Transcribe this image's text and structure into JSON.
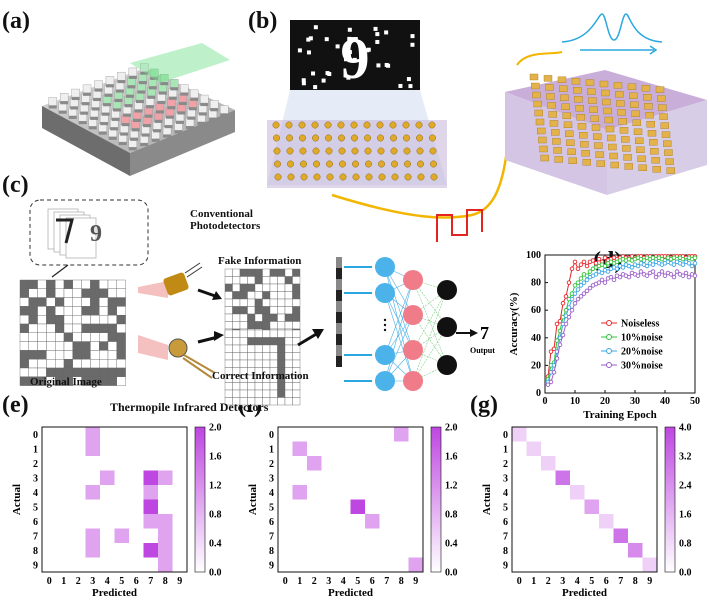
{
  "panels": {
    "a": "(a)",
    "b": "(b)",
    "c": "(c)",
    "d": "(d)",
    "e": "(e)",
    "f": "(f)",
    "g": "(g)"
  },
  "panel_c": {
    "conventional_label": "Conventional\nPhotodetectors",
    "fake_info": "Fake Information",
    "correct_info": "Correct Information",
    "original_image": "Original Image",
    "thermopile": "Thermopile  Infrared Detectors",
    "output_digit": "7",
    "output_label": "Output"
  },
  "chart_data": [
    {
      "id": "d",
      "type": "line",
      "xlabel": "Training Epoch",
      "ylabel": "Accuracy(%)",
      "xlim": [
        0,
        50
      ],
      "ylim": [
        0,
        100
      ],
      "xticks": [
        0,
        10,
        20,
        30,
        40,
        50
      ],
      "yticks": [
        0,
        20,
        40,
        60,
        80,
        100
      ],
      "legend_position": "center-right",
      "series": [
        {
          "name": "Noiseless",
          "color": "#e8262a",
          "marker": "circle",
          "x": [
            1,
            2,
            3,
            4,
            5,
            6,
            7,
            8,
            9,
            10,
            11,
            12,
            13,
            14,
            15,
            16,
            17,
            18,
            19,
            20,
            21,
            22,
            23,
            24,
            25,
            26,
            27,
            28,
            29,
            30,
            31,
            32,
            33,
            34,
            35,
            36,
            37,
            38,
            39,
            40,
            41,
            42,
            43,
            44,
            45,
            46,
            47,
            48,
            49,
            50
          ],
          "y": [
            12,
            30,
            32,
            50,
            52,
            65,
            70,
            80,
            90,
            95,
            90,
            93,
            95,
            92,
            95,
            96,
            94,
            97,
            95,
            98,
            96,
            97,
            98,
            97,
            98,
            99,
            98,
            98,
            99,
            98,
            99,
            99,
            98,
            99,
            99,
            98,
            99,
            99,
            99,
            99,
            99,
            98,
            99,
            99,
            99,
            99,
            98,
            99,
            99,
            99
          ]
        },
        {
          "name": "10%noise",
          "color": "#33c23a",
          "marker": "circle",
          "x": [
            1,
            2,
            3,
            4,
            5,
            6,
            7,
            8,
            9,
            10,
            11,
            12,
            13,
            14,
            15,
            16,
            17,
            18,
            19,
            20,
            21,
            22,
            23,
            24,
            25,
            26,
            27,
            28,
            29,
            30,
            31,
            32,
            33,
            34,
            35,
            36,
            37,
            38,
            39,
            40,
            41,
            42,
            43,
            44,
            45,
            46,
            47,
            48,
            49,
            50
          ],
          "y": [
            10,
            20,
            22,
            38,
            45,
            55,
            60,
            68,
            72,
            78,
            80,
            83,
            86,
            85,
            88,
            90,
            91,
            92,
            93,
            92,
            94,
            95,
            94,
            95,
            96,
            97,
            96,
            97,
            96,
            97,
            98,
            97,
            96,
            98,
            97,
            98,
            97,
            98,
            97,
            96,
            98,
            97,
            98,
            97,
            98,
            97,
            96,
            98,
            97,
            98
          ]
        },
        {
          "name": "20%noise",
          "color": "#3aa5e6",
          "marker": "circle",
          "x": [
            1,
            2,
            3,
            4,
            5,
            6,
            7,
            8,
            9,
            10,
            11,
            12,
            13,
            14,
            15,
            16,
            17,
            18,
            19,
            20,
            21,
            22,
            23,
            24,
            25,
            26,
            27,
            28,
            29,
            30,
            31,
            32,
            33,
            34,
            35,
            36,
            37,
            38,
            39,
            40,
            41,
            42,
            43,
            44,
            45,
            46,
            47,
            48,
            49,
            50
          ],
          "y": [
            8,
            15,
            20,
            30,
            40,
            50,
            56,
            62,
            68,
            72,
            75,
            78,
            80,
            82,
            84,
            85,
            86,
            88,
            87,
            89,
            88,
            90,
            91,
            90,
            92,
            91,
            93,
            92,
            91,
            93,
            92,
            94,
            93,
            92,
            94,
            93,
            95,
            94,
            93,
            94,
            95,
            94,
            93,
            95,
            94,
            93,
            95,
            94,
            92,
            94
          ]
        },
        {
          "name": "30%noise",
          "color": "#9a5ec9",
          "marker": "circle",
          "x": [
            1,
            2,
            3,
            4,
            5,
            6,
            7,
            8,
            9,
            10,
            11,
            12,
            13,
            14,
            15,
            16,
            17,
            18,
            19,
            20,
            21,
            22,
            23,
            24,
            25,
            26,
            27,
            28,
            29,
            30,
            31,
            32,
            33,
            34,
            35,
            36,
            37,
            38,
            39,
            40,
            41,
            42,
            43,
            44,
            45,
            46,
            47,
            48,
            49,
            50
          ],
          "y": [
            6,
            8,
            15,
            25,
            35,
            42,
            50,
            55,
            60,
            65,
            68,
            70,
            72,
            74,
            76,
            78,
            79,
            80,
            82,
            80,
            83,
            84,
            82,
            85,
            84,
            86,
            85,
            84,
            87,
            86,
            85,
            88,
            86,
            85,
            87,
            88,
            84,
            86,
            88,
            85,
            87,
            86,
            84,
            88,
            86,
            85,
            87,
            84,
            86,
            85
          ]
        }
      ]
    },
    {
      "id": "e",
      "type": "heatmap",
      "xlabel": "Predicted",
      "ylabel": "Actual",
      "xticks": [
        "0",
        "1",
        "2",
        "3",
        "4",
        "5",
        "6",
        "7",
        "8",
        "9"
      ],
      "yticks": [
        "0",
        "1",
        "2",
        "3",
        "4",
        "5",
        "6",
        "7",
        "8",
        "9"
      ],
      "colorbar_ticks": [
        "0.0",
        "0.4",
        "0.8",
        "1.2",
        "1.6",
        "2.0"
      ],
      "colorbar_range": [
        0,
        2.0
      ],
      "cells": [
        [
          0,
          3,
          1
        ],
        [
          1,
          3,
          1
        ],
        [
          3,
          4,
          1
        ],
        [
          3,
          7,
          2
        ],
        [
          3,
          8,
          1
        ],
        [
          4,
          3,
          1
        ],
        [
          4,
          7,
          1
        ],
        [
          5,
          7,
          2
        ],
        [
          6,
          7,
          1
        ],
        [
          6,
          8,
          1
        ],
        [
          7,
          3,
          1
        ],
        [
          7,
          5,
          1
        ],
        [
          7,
          8,
          1
        ],
        [
          8,
          3,
          1
        ],
        [
          8,
          7,
          2
        ],
        [
          8,
          8,
          1
        ],
        [
          9,
          8,
          1
        ]
      ]
    },
    {
      "id": "f",
      "type": "heatmap",
      "xlabel": "Predicted",
      "ylabel": "Actual",
      "xticks": [
        "0",
        "1",
        "2",
        "3",
        "4",
        "5",
        "6",
        "7",
        "8",
        "9"
      ],
      "yticks": [
        "0",
        "1",
        "2",
        "3",
        "4",
        "5",
        "6",
        "7",
        "8",
        "9"
      ],
      "colorbar_ticks": [
        "0.0",
        "0.4",
        "0.8",
        "1.2",
        "1.6",
        "2.0"
      ],
      "colorbar_range": [
        0,
        2.0
      ],
      "cells": [
        [
          0,
          8,
          1
        ],
        [
          1,
          1,
          1
        ],
        [
          2,
          2,
          1
        ],
        [
          4,
          1,
          1
        ],
        [
          5,
          5,
          2
        ],
        [
          6,
          6,
          1
        ],
        [
          9,
          9,
          1
        ]
      ]
    },
    {
      "id": "g",
      "type": "heatmap",
      "xlabel": "Predicted",
      "ylabel": "Actual",
      "xticks": [
        "0",
        "1",
        "2",
        "3",
        "4",
        "5",
        "6",
        "7",
        "8",
        "9"
      ],
      "yticks": [
        "0",
        "1",
        "2",
        "3",
        "4",
        "5",
        "6",
        "7",
        "8",
        "9"
      ],
      "colorbar_ticks": [
        "0.0",
        "0.8",
        "1.6",
        "2.4",
        "3.2",
        "4.0"
      ],
      "colorbar_range": [
        0,
        4.0
      ],
      "cells": [
        [
          0,
          0,
          1
        ],
        [
          1,
          1,
          1
        ],
        [
          2,
          2,
          1
        ],
        [
          3,
          3,
          3
        ],
        [
          4,
          4,
          1
        ],
        [
          5,
          5,
          2
        ],
        [
          6,
          6,
          1
        ],
        [
          7,
          7,
          3
        ],
        [
          8,
          8,
          2.5
        ],
        [
          9,
          9,
          1
        ]
      ]
    }
  ]
}
